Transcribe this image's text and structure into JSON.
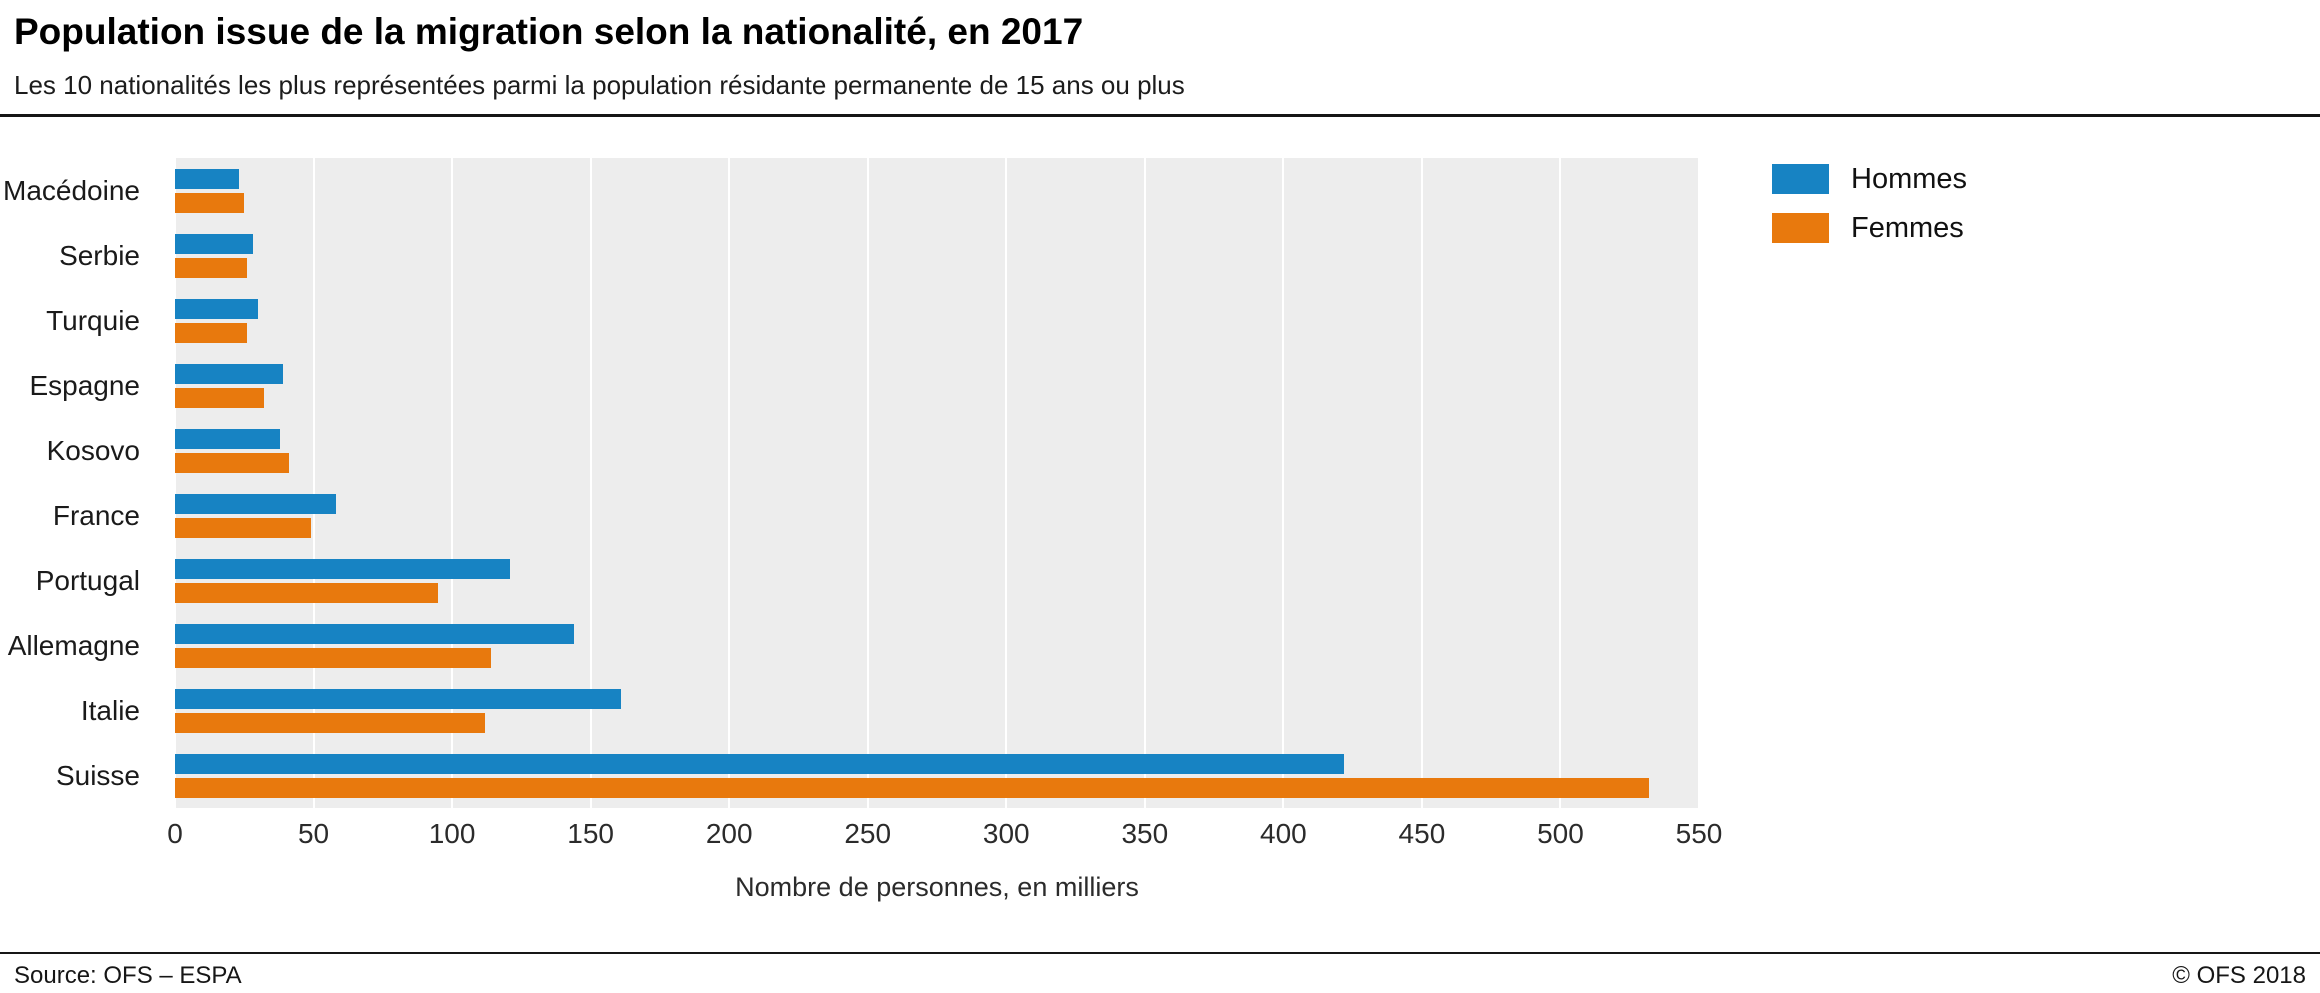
{
  "header": {
    "title": "Population issue de la migration selon la nationalité, en 2017",
    "subtitle": "Les 10 nationalités les plus représentées parmi la population résidante permanente de 15 ans ou plus"
  },
  "chart_data": {
    "type": "bar",
    "orientation": "horizontal",
    "title": "Population issue de la migration selon la nationalité, en 2017",
    "subtitle": "Les 10 nationalités les plus représentées parmi la population résidante permanente de 15 ans ou plus",
    "categories": [
      "Macédoine",
      "Serbie",
      "Turquie",
      "Espagne",
      "Kosovo",
      "France",
      "Portugal",
      "Allemagne",
      "Italie",
      "Suisse"
    ],
    "series": [
      {
        "name": "Hommes",
        "color": "#1783c3",
        "values": [
          23,
          28,
          30,
          39,
          38,
          58,
          121,
          144,
          161,
          422
        ]
      },
      {
        "name": "Femmes",
        "color": "#e8790d",
        "values": [
          25,
          26,
          26,
          32,
          41,
          49,
          95,
          114,
          112,
          532
        ]
      }
    ],
    "xlabel": "Nombre de personnes, en milliers",
    "xlim": [
      0,
      550
    ],
    "xticks": [
      0,
      50,
      100,
      150,
      200,
      250,
      300,
      350,
      400,
      450,
      500,
      550
    ],
    "grid": true,
    "plot_background": "#ededed",
    "gridline_color": "#ffffff",
    "legend_position": "top-right"
  },
  "footer": {
    "source": "Source: OFS – ESPA",
    "copyright": "© OFS 2018"
  }
}
